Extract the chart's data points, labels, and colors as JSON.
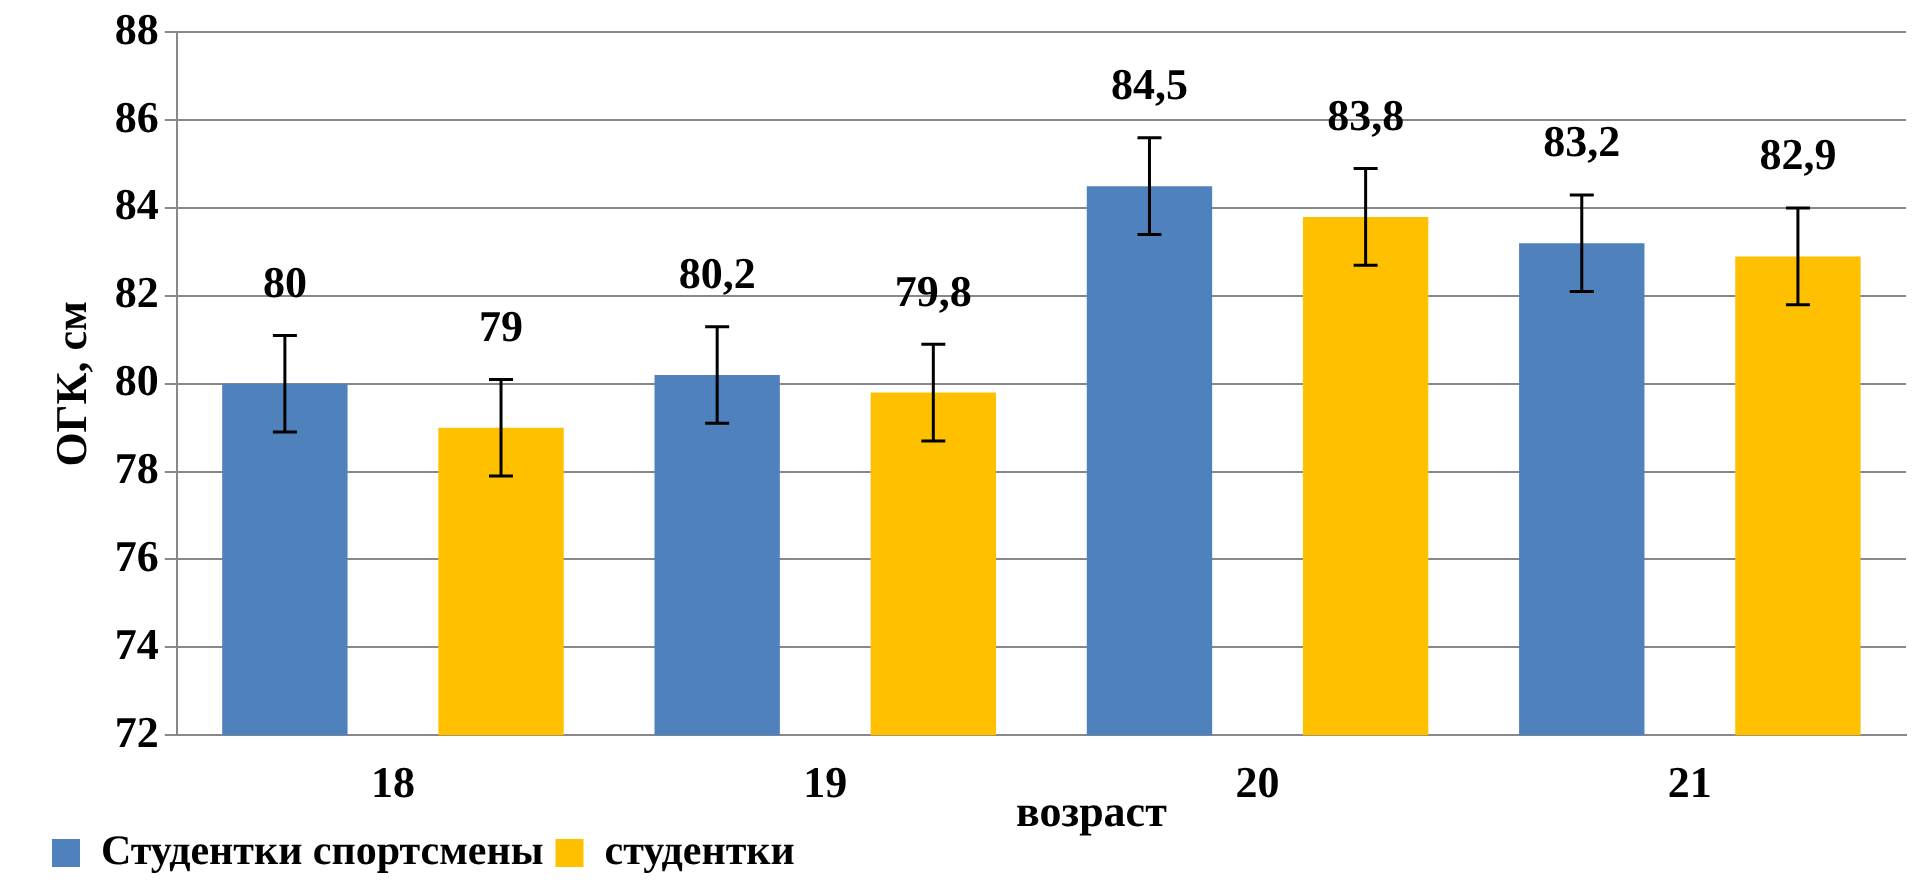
{
  "chart_data": {
    "type": "bar",
    "xlabel": "возраст",
    "ylabel": "ОГК, см",
    "categories": [
      "18",
      "19",
      "20",
      "21"
    ],
    "series": [
      {
        "name": "Студентки спортсмены",
        "color": "#4f81bd",
        "values": [
          80,
          80.2,
          84.5,
          83.2
        ],
        "value_labels": [
          "80",
          "80,2",
          "84,5",
          "83,2"
        ],
        "errors": [
          1.1,
          1.1,
          1.1,
          1.1
        ]
      },
      {
        "name": "студентки",
        "color": "#ffc000",
        "values": [
          79,
          79.8,
          83.8,
          82.9
        ],
        "value_labels": [
          "79",
          "79,8",
          "83,8",
          "82,9"
        ],
        "errors": [
          1.1,
          1.1,
          1.1,
          1.1
        ]
      }
    ],
    "ylim": [
      72,
      88
    ],
    "yticks": [
      72,
      74,
      76,
      78,
      80,
      82,
      84,
      86,
      88
    ],
    "grid": "y",
    "legend": "bottom left"
  }
}
